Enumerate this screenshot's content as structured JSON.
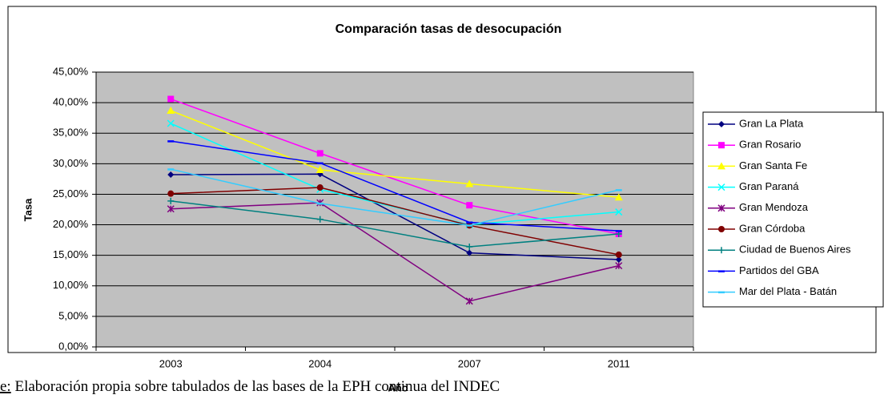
{
  "chart_data": {
    "type": "line",
    "title": "Comparación tasas de desocupación",
    "ylabel": "Tasa",
    "xlabel": "Año",
    "source_prefix": "e:",
    "source": " Elaboración propia sobre tabulados de las bases de la EPH continua del INDEC",
    "categories": [
      "2003",
      "2004",
      "2007",
      "2011"
    ],
    "ylim": [
      0,
      45
    ],
    "yticks": [
      {
        "value": 0,
        "label": "0,00%"
      },
      {
        "value": 5,
        "label": "5,00%"
      },
      {
        "value": 10,
        "label": "10,00%"
      },
      {
        "value": 15,
        "label": "15,00%"
      },
      {
        "value": 20,
        "label": "20,00%"
      },
      {
        "value": 25,
        "label": "25,00%"
      },
      {
        "value": 30,
        "label": "30,00%"
      },
      {
        "value": 35,
        "label": "35,00%"
      },
      {
        "value": 40,
        "label": "40,00%"
      },
      {
        "value": 45,
        "label": "45,00%"
      }
    ],
    "grid": true,
    "legend": "right",
    "series": [
      {
        "name": "Gran La Plata",
        "color": "#000080",
        "marker": "diamond",
        "values": [
          28.2,
          28.3,
          15.4,
          14.3
        ]
      },
      {
        "name": "Gran Rosario",
        "color": "#ff00ff",
        "marker": "square",
        "values": [
          40.6,
          31.7,
          23.2,
          18.5
        ]
      },
      {
        "name": "Gran Santa Fe",
        "color": "#ffff00",
        "marker": "triangle",
        "values": [
          38.7,
          29.0,
          26.7,
          24.5
        ]
      },
      {
        "name": "Gran Paraná",
        "color": "#00ffff",
        "marker": "x",
        "values": [
          36.6,
          25.8,
          20.0,
          22.1
        ]
      },
      {
        "name": "Gran Mendoza",
        "color": "#800080",
        "marker": "star",
        "values": [
          22.6,
          23.6,
          7.5,
          13.3
        ]
      },
      {
        "name": "Gran Córdoba",
        "color": "#800000",
        "marker": "circle",
        "values": [
          25.1,
          26.1,
          19.9,
          15.1
        ]
      },
      {
        "name": "Ciudad de Buenos Aires",
        "color": "#008080",
        "marker": "plus",
        "values": [
          23.9,
          20.9,
          16.4,
          18.5
        ]
      },
      {
        "name": "Partidos del GBA",
        "color": "#0000ff",
        "marker": "dash",
        "values": [
          33.7,
          30.1,
          20.4,
          19.0
        ]
      },
      {
        "name": "Mar del Plata - Batán",
        "color": "#33ccff",
        "marker": "dash",
        "values": [
          29.1,
          23.5,
          19.9,
          25.7
        ]
      }
    ]
  }
}
